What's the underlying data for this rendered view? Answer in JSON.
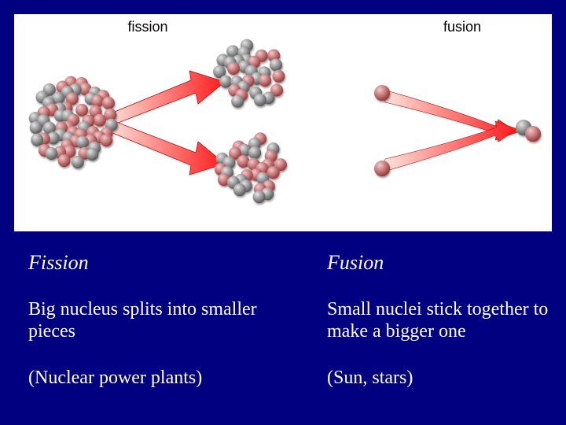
{
  "slide": {
    "background_color": "#000080",
    "panel_background": "#ffffff",
    "text_color": "#ffffff",
    "heading_fontsize": 26,
    "body_fontsize": 24,
    "diagram_label_fontsize": 18
  },
  "diagram": {
    "labels": {
      "fission": "fission",
      "fusion": "fusion"
    },
    "arrow": {
      "fill_start": "#ffe4dc",
      "fill_end": "#ff1a1a",
      "stroke": "#cc0000"
    },
    "nucleon": {
      "proton_light": "#f6c8c8",
      "proton_dark": "#9a3a3a",
      "neutron_light": "#e4e4e4",
      "neutron_dark": "#5a5a5a",
      "shadow": "#333333"
    },
    "fission": {
      "large_nucleon_count": 60,
      "small_nucleon_count": 30,
      "large_radius": 52,
      "small_radius": 40,
      "particle_radius": 8
    },
    "fusion": {
      "input_particle_radius": 10,
      "output_particle_radius": 10,
      "input_count": 2,
      "output_count": 2
    }
  },
  "text": {
    "left": {
      "heading": "Fission",
      "desc": "Big nucleus splits into smaller pieces",
      "example": "(Nuclear power plants)"
    },
    "right": {
      "heading": "Fusion",
      "desc": "Small nuclei stick together to make a bigger one",
      "example": "(Sun, stars)"
    }
  }
}
